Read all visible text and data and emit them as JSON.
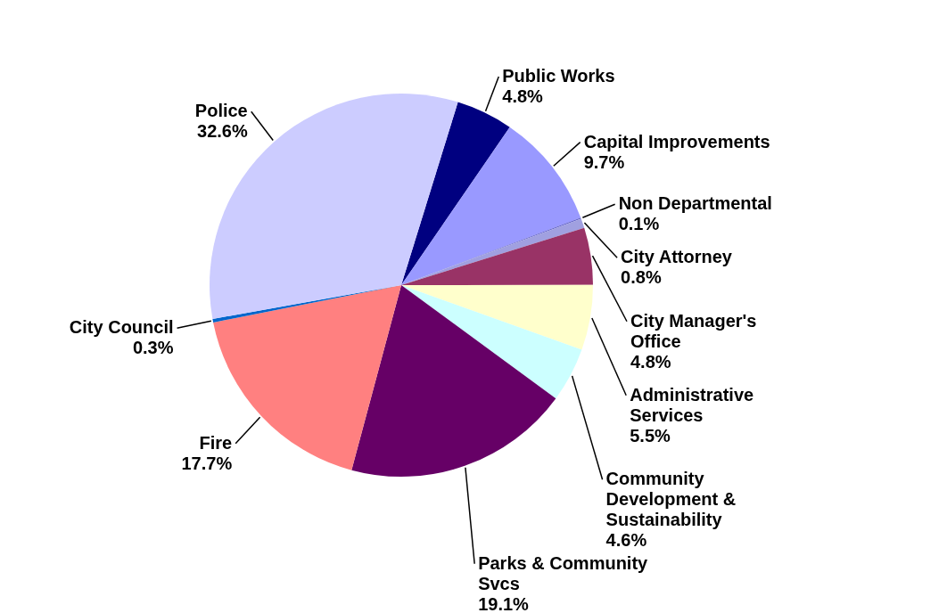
{
  "chart_data": {
    "type": "pie",
    "categories": [
      "Public Works",
      "Capital Improvements",
      "Non Departmental",
      "City Attorney",
      "City Manager's Office",
      "Administrative Services",
      "Community Development & Sustainability",
      "Parks & Community Svcs",
      "Fire",
      "City Council",
      "Police"
    ],
    "values": [
      4.8,
      9.7,
      0.1,
      0.8,
      4.8,
      5.5,
      4.6,
      19.1,
      17.7,
      0.3,
      32.6
    ],
    "value_labels": [
      "4.8%",
      "9.7%",
      "0.1%",
      "0.8%",
      "4.8%",
      "5.5%",
      "4.6%",
      "19.1%",
      "17.7%",
      "0.3%",
      "32.6%"
    ],
    "colors": [
      "#000080",
      "#9999ff",
      "#6666cc",
      "#a0a0e0",
      "#993366",
      "#ffffcc",
      "#ccffff",
      "#660066",
      "#ff8080",
      "#0066cc",
      "#ccccff"
    ]
  }
}
